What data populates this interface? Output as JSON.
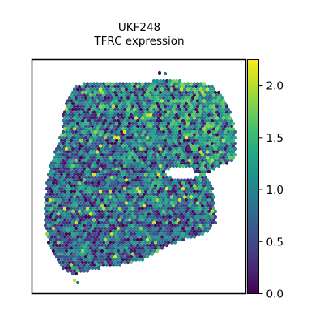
{
  "chart_data": {
    "type": "heatmap",
    "title": "UKF248",
    "subtitle": "TFRC expression",
    "xlabel": "",
    "ylabel": "",
    "colorbar": {
      "colormap": "viridis",
      "range": [
        0.0,
        2.25
      ],
      "ticks": [
        0.0,
        0.5,
        1.0,
        1.5,
        2.0
      ],
      "tick_labels": [
        "0.0",
        "0.5",
        "1.0",
        "1.5",
        "2.0"
      ]
    },
    "spots": {
      "count_approx": 2400,
      "value_min": 0.0,
      "value_max": 2.2,
      "typical_value": 0.7,
      "high_expression_region": "upper-right",
      "missing_tissue_hole": "right-center"
    },
    "axes_visible": false,
    "grid": false
  }
}
